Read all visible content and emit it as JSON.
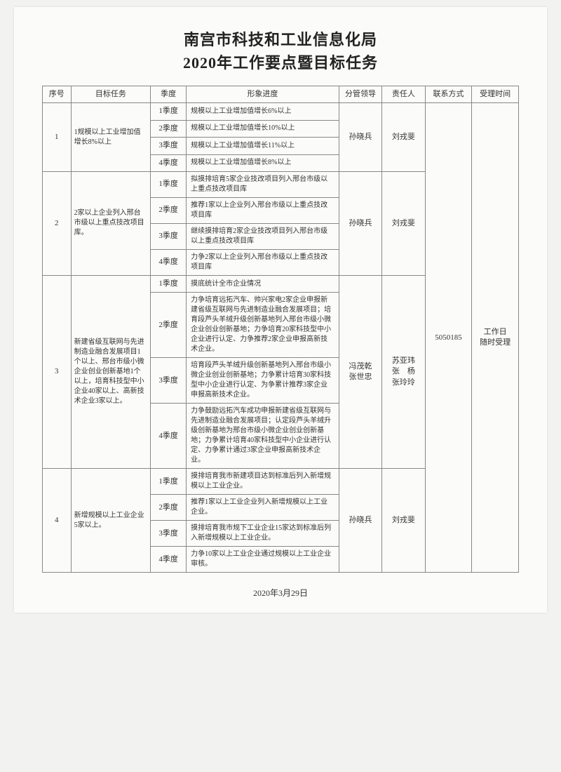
{
  "title_line1": "南宫市科技和工业信息化局",
  "title_line2": "2020年工作要点暨目标任务",
  "headers": {
    "seq": "序号",
    "task": "目标任务",
    "quarter": "季度",
    "progress": "形象进度",
    "leader": "分管领导",
    "responsible": "责任人",
    "contact": "联系方式",
    "time": "受理时间"
  },
  "contact_value": "5050185",
  "time_value": "工作日随时受理",
  "footer_date": "2020年3月29日",
  "rows": [
    {
      "seq": "1",
      "task": "1规模以上工业增加值增长8%以上",
      "leader": "孙晓兵",
      "responsible": "刘戎斐",
      "quarters": [
        {
          "q": "1季度",
          "p": "规模以上工业增加值增长6%以上"
        },
        {
          "q": "2季度",
          "p": "规模以上工业增加值增长10%以上"
        },
        {
          "q": "3季度",
          "p": "规模以上工业增加值增长11%以上"
        },
        {
          "q": "4季度",
          "p": "规模以上工业增加值增长8%以上"
        }
      ]
    },
    {
      "seq": "2",
      "task": "2家以上企业列入邢台市级以上重点技改项目库。",
      "leader": "孙晓兵",
      "responsible": "刘戎斐",
      "quarters": [
        {
          "q": "1季度",
          "p": "拟摸排培育5家企业技改项目列入邢台市级以上重点技改项目库"
        },
        {
          "q": "2季度",
          "p": "推荐1家以上企业列入邢台市级以上重点技改项目库"
        },
        {
          "q": "3季度",
          "p": "继续摸排培育2家企业技改项目列入邢台市级以上重点技改项目库"
        },
        {
          "q": "4季度",
          "p": "力争2家以上企业列入邢台市级以上重点技改项目库"
        }
      ]
    },
    {
      "seq": "3",
      "task": "新建省级互联网与先进制造业融合发展项目1个以上、邢台市级小微企业创业创新基地1个以上，培育科技型中小企业40家以上、高新技术企业3家以上。",
      "leader": "冯茂乾 张世忠",
      "responsible": "苏亚玮 张　杨 张玲玲",
      "quarters": [
        {
          "q": "1季度",
          "p": "摸底统计全市企业情况"
        },
        {
          "q": "2季度",
          "p": "力争培育远拓汽车、帅兴家电2家企业申报新建省级互联网与先进制造业融合发展项目；培育段芦头羊绒升级创新基地列入邢台市级小微企业创业创新基地；力争培育20家科技型中小企业进行认定、力争推荐2家企业申报高新技术企业。"
        },
        {
          "q": "3季度",
          "p": "培育段芦头羊绒升级创新基地列入邢台市级小微企业创业创新基地；力争累计培育30家科技型中小企业进行认定、为争累计推荐3家企业申报高新技术企业。"
        },
        {
          "q": "4季度",
          "p": "力争鼓励远拓汽车成功申报新建省级互联网与先进制造业融合发展项目；认定段芦头羊绒升级创新基地为邢台市级小微企业创业创新基地；力争累计培育40家科技型中小企业进行认定、力争累计通过3家企业申报高新技术企业。"
        }
      ]
    },
    {
      "seq": "4",
      "task": "新增规模以上工业企业5家以上。",
      "leader": "孙晓兵",
      "responsible": "刘戎斐",
      "quarters": [
        {
          "q": "1季度",
          "p": "摸排培育我市新建项目达到标准后列入新增规模以上工业企业。"
        },
        {
          "q": "2季度",
          "p": "推荐1家以上工业企业列入新增规模以上工业企业。"
        },
        {
          "q": "3季度",
          "p": "摸排培育我市规下工业企业15家达到标准后列入新增规模以上工业企业。"
        },
        {
          "q": "4季度",
          "p": "力争10家以上工业企业通过规模以上工业企业审核。"
        }
      ]
    }
  ]
}
